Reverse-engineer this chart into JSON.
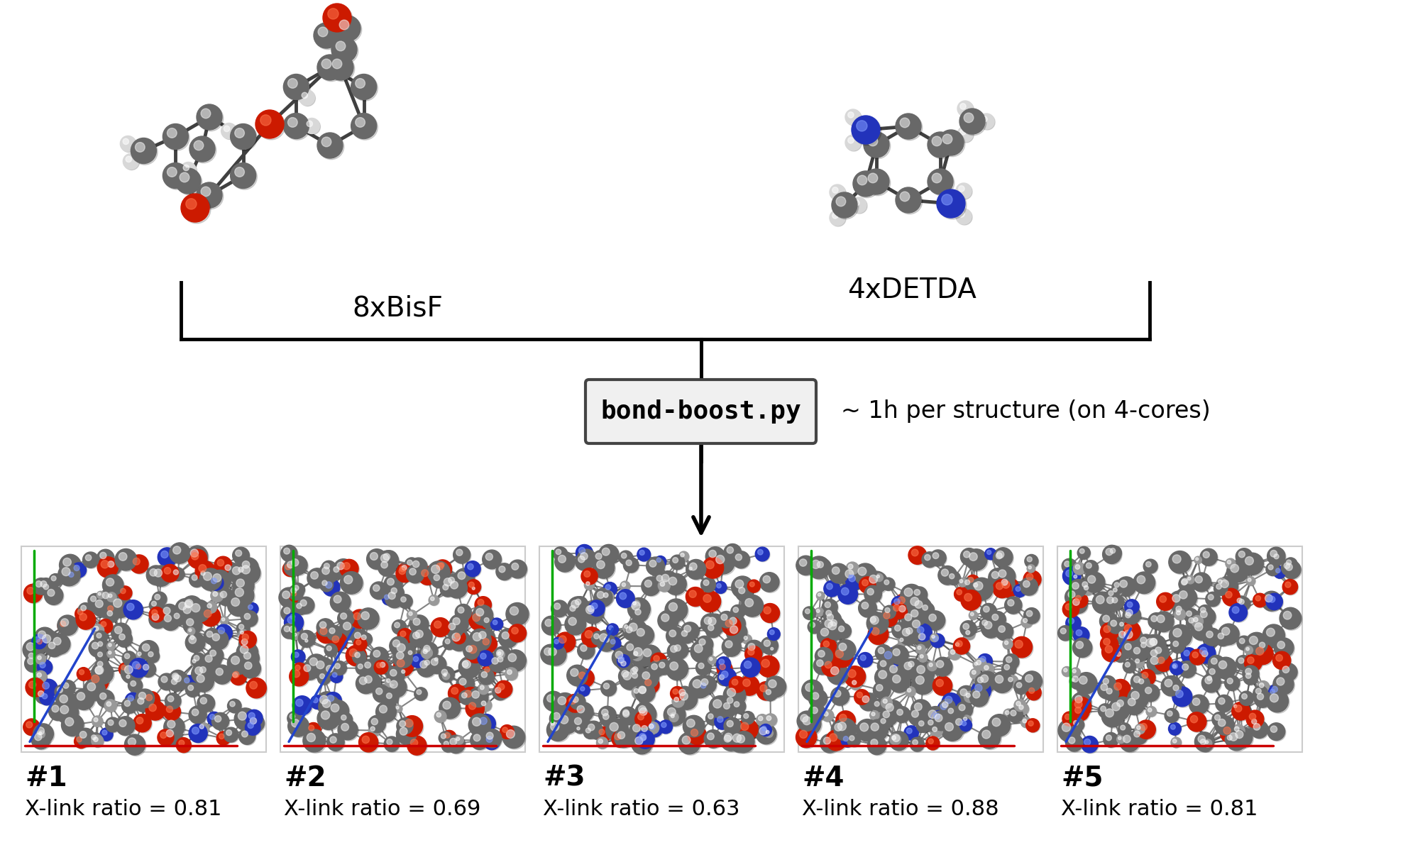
{
  "bg_color": "#ffffff",
  "text_color": "#000000",
  "bisf_label": "8xBisF",
  "detda_label": "4xDETDA",
  "script_box_label": "bond-boost.py",
  "time_label": "~ 1h per structure (on 4-cores)",
  "structures": [
    "#1",
    "#2",
    "#3",
    "#4",
    "#5"
  ],
  "xlink_ratios": [
    "0.81",
    "0.69",
    "0.63",
    "0.88",
    "0.81"
  ],
  "xlink_label_prefix": "X-link ratio = ",
  "label_fontsize": 28,
  "script_fontsize": 26,
  "time_fontsize": 24,
  "struct_num_fontsize": 28,
  "xlink_fontsize": 22
}
